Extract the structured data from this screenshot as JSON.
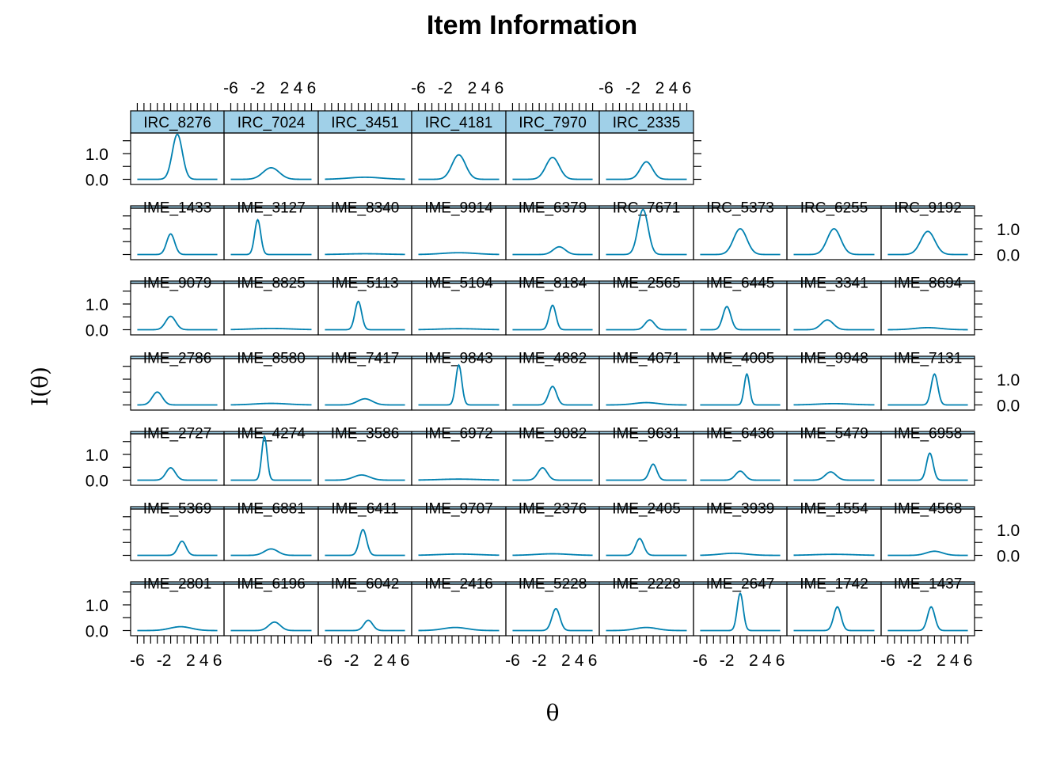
{
  "chart_data": {
    "type": "line",
    "title": "Item Information",
    "xlabel": "θ",
    "ylabel": "I(θ)",
    "xlim": [
      -7,
      7
    ],
    "ylim": [
      -0.2,
      1.8
    ],
    "x_ticks": [
      -6,
      -4,
      -2,
      0,
      2,
      4,
      6
    ],
    "x_tick_labels": [
      "-6",
      "-2",
      "2",
      "4",
      "6"
    ],
    "y_ticks": [
      0.0,
      0.5,
      1.0,
      1.5
    ],
    "y_tick_labels": [
      "0.0",
      "1.0"
    ],
    "line_color": "#0080B0",
    "strip_color": "#A0D0E8",
    "panels": [
      {
        "name": "IME_2801",
        "peak": 0.15,
        "center": 0.5,
        "width": 1.6
      },
      {
        "name": "IME_6196",
        "peak": 0.33,
        "center": 0.5,
        "width": 0.85
      },
      {
        "name": "IME_6042",
        "peak": 0.4,
        "center": 0.5,
        "width": 0.65
      },
      {
        "name": "IME_2416",
        "peak": 0.12,
        "center": -0.5,
        "width": 1.8
      },
      {
        "name": "IME_5228",
        "peak": 0.85,
        "center": 0.5,
        "width": 0.6
      },
      {
        "name": "IME_2228",
        "peak": 0.12,
        "center": 0.0,
        "width": 1.6
      },
      {
        "name": "IME_2647",
        "peak": 1.45,
        "center": 0.0,
        "width": 0.45
      },
      {
        "name": "IME_1742",
        "peak": 0.92,
        "center": 0.5,
        "width": 0.55
      },
      {
        "name": "IME_1437",
        "peak": 0.92,
        "center": 0.5,
        "width": 0.55
      },
      {
        "name": "IME_5369",
        "peak": 0.55,
        "center": 0.7,
        "width": 0.6
      },
      {
        "name": "IME_6881",
        "peak": 0.25,
        "center": 0.0,
        "width": 1.0
      },
      {
        "name": "IME_6411",
        "peak": 1.0,
        "center": -0.3,
        "width": 0.55
      },
      {
        "name": "IME_9707",
        "peak": 0.05,
        "center": 0.0,
        "width": 3.0
      },
      {
        "name": "IME_2376",
        "peak": 0.06,
        "center": 0.0,
        "width": 2.5
      },
      {
        "name": "IME_2405",
        "peak": 0.65,
        "center": -1.0,
        "width": 0.6
      },
      {
        "name": "IME_3939",
        "peak": 0.08,
        "center": -1.0,
        "width": 2.0
      },
      {
        "name": "IME_1554",
        "peak": 0.04,
        "center": 0.0,
        "width": 3.0
      },
      {
        "name": "IME_4568",
        "peak": 0.16,
        "center": 1.0,
        "width": 1.2
      },
      {
        "name": "IME_2727",
        "peak": 0.48,
        "center": -1.0,
        "width": 0.7
      },
      {
        "name": "IME_4274",
        "peak": 1.7,
        "center": -1.0,
        "width": 0.4
      },
      {
        "name": "IME_3586",
        "peak": 0.2,
        "center": -0.5,
        "width": 1.2
      },
      {
        "name": "IME_6972",
        "peak": 0.04,
        "center": 0.0,
        "width": 3.0
      },
      {
        "name": "IME_9082",
        "peak": 0.48,
        "center": -1.5,
        "width": 0.7
      },
      {
        "name": "IME_9631",
        "peak": 0.62,
        "center": 1.0,
        "width": 0.55
      },
      {
        "name": "IME_6436",
        "peak": 0.35,
        "center": 0.0,
        "width": 0.7
      },
      {
        "name": "IME_5479",
        "peak": 0.32,
        "center": -0.5,
        "width": 0.8
      },
      {
        "name": "IME_6958",
        "peak": 1.05,
        "center": 0.3,
        "width": 0.5
      },
      {
        "name": "IME_2786",
        "peak": 0.5,
        "center": -3.0,
        "width": 0.75
      },
      {
        "name": "IME_8580",
        "peak": 0.06,
        "center": 0.0,
        "width": 2.5
      },
      {
        "name": "IME_7417",
        "peak": 0.24,
        "center": 0.0,
        "width": 1.1
      },
      {
        "name": "IME_9843",
        "peak": 1.55,
        "center": 0.0,
        "width": 0.45
      },
      {
        "name": "IME_4882",
        "peak": 0.72,
        "center": 0.0,
        "width": 0.6
      },
      {
        "name": "IME_4071",
        "peak": 0.09,
        "center": 0.0,
        "width": 1.8
      },
      {
        "name": "IME_4005",
        "peak": 1.2,
        "center": 1.0,
        "width": 0.4
      },
      {
        "name": "IME_9948",
        "peak": 0.05,
        "center": 0.0,
        "width": 2.5
      },
      {
        "name": "IME_7131",
        "peak": 1.2,
        "center": 1.0,
        "width": 0.5
      },
      {
        "name": "IME_9079",
        "peak": 0.52,
        "center": -1.0,
        "width": 0.75
      },
      {
        "name": "IME_8825",
        "peak": 0.05,
        "center": 0.0,
        "width": 3.0
      },
      {
        "name": "IME_5113",
        "peak": 1.1,
        "center": -1.0,
        "width": 0.5
      },
      {
        "name": "IME_5104",
        "peak": 0.04,
        "center": 0.0,
        "width": 3.0
      },
      {
        "name": "IME_8184",
        "peak": 0.95,
        "center": 0.0,
        "width": 0.5
      },
      {
        "name": "IME_2565",
        "peak": 0.38,
        "center": 0.5,
        "width": 0.7
      },
      {
        "name": "IME_6445",
        "peak": 0.9,
        "center": -2.0,
        "width": 0.6
      },
      {
        "name": "IME_3341",
        "peak": 0.38,
        "center": -1.0,
        "width": 0.9
      },
      {
        "name": "IME_8694",
        "peak": 0.08,
        "center": 0.0,
        "width": 2.0
      },
      {
        "name": "IME_1433",
        "peak": 0.8,
        "center": -1.0,
        "width": 0.6
      },
      {
        "name": "IME_3127",
        "peak": 1.35,
        "center": -2.0,
        "width": 0.45
      },
      {
        "name": "IME_8340",
        "peak": 0.03,
        "center": 0.0,
        "width": 3.0
      },
      {
        "name": "IME_9914",
        "peak": 0.07,
        "center": 0.0,
        "width": 2.5
      },
      {
        "name": "IME_6379",
        "peak": 0.3,
        "center": 1.0,
        "width": 0.9
      },
      {
        "name": "IRC_7671",
        "peak": 1.75,
        "center": -0.5,
        "width": 0.75
      },
      {
        "name": "IRC_5373",
        "peak": 1.0,
        "center": 0.0,
        "width": 1.0
      },
      {
        "name": "IRC_6255",
        "peak": 1.0,
        "center": 0.0,
        "width": 1.0
      },
      {
        "name": "IRC_9192",
        "peak": 0.9,
        "center": 0.0,
        "width": 1.05
      },
      {
        "name": "IRC_8276",
        "peak": 1.75,
        "center": 0.0,
        "width": 0.75
      },
      {
        "name": "IRC_7024",
        "peak": 0.45,
        "center": 0.0,
        "width": 1.2
      },
      {
        "name": "IRC_3451",
        "peak": 0.08,
        "center": 0.0,
        "width": 2.5
      },
      {
        "name": "IRC_4181",
        "peak": 0.95,
        "center": 0.0,
        "width": 1.0
      },
      {
        "name": "IRC_7970",
        "peak": 0.85,
        "center": 0.0,
        "width": 1.0
      },
      {
        "name": "IRC_2335",
        "peak": 0.68,
        "center": 0.0,
        "width": 0.9
      }
    ]
  }
}
